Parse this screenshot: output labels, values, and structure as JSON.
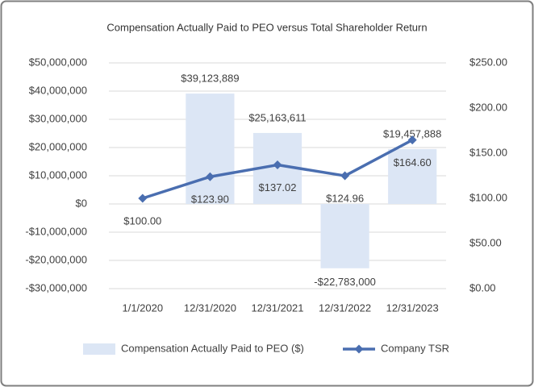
{
  "chart_data": {
    "type": "bar_line",
    "title": "Compensation Actually Paid to PEO versus Total Shareholder Return",
    "categories": [
      "1/1/2020",
      "12/31/2020",
      "12/31/2021",
      "12/31/2022",
      "12/31/2023"
    ],
    "series": [
      {
        "name": "Compensation Actually Paid to PEO ($)",
        "type": "bar",
        "color": "#dce6f5",
        "values": [
          null,
          39123889,
          25163611,
          -22783000,
          19457888
        ],
        "value_labels": [
          null,
          "$39,123,889",
          "$25,163,611",
          "-$22,783,000",
          "$19,457,888"
        ]
      },
      {
        "name": "Company TSR",
        "type": "line",
        "axis": "y2",
        "color": "#4a6eb0",
        "values": [
          100.0,
          123.9,
          137.02,
          124.96,
          164.6
        ],
        "value_labels": [
          "$100.00",
          "$123.90",
          "$137.02",
          "$124.96",
          "$164.60"
        ]
      }
    ],
    "ylim": [
      -30000000,
      50000000
    ],
    "yticks": [
      {
        "value": -30000000,
        "label": "-$30,000,000"
      },
      {
        "value": -20000000,
        "label": "-$20,000,000"
      },
      {
        "value": -10000000,
        "label": "-$10,000,000"
      },
      {
        "value": 0,
        "label": "$0"
      },
      {
        "value": 10000000,
        "label": "$10,000,000"
      },
      {
        "value": 20000000,
        "label": "$20,000,000"
      },
      {
        "value": 30000000,
        "label": "$30,000,000"
      },
      {
        "value": 40000000,
        "label": "$40,000,000"
      },
      {
        "value": 50000000,
        "label": "$50,000,000"
      }
    ],
    "y2lim": [
      0,
      250
    ],
    "y2ticks": [
      {
        "value": 0,
        "label": "$0.00"
      },
      {
        "value": 50,
        "label": "$50.00"
      },
      {
        "value": 100,
        "label": "$100.00"
      },
      {
        "value": 150,
        "label": "$150.00"
      },
      {
        "value": 200,
        "label": "$200.00"
      },
      {
        "value": 250,
        "label": "$250.00"
      }
    ],
    "grid": true,
    "legend": "bottom"
  }
}
